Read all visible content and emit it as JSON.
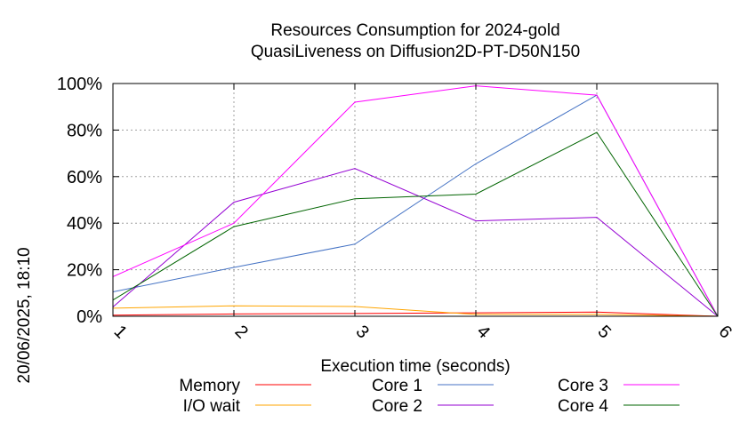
{
  "chart_data": {
    "type": "line",
    "title": "Resources Consumption for 2024-gold",
    "subtitle": "QuasiLiveness on Diffusion2D-PT-D50N150",
    "xlabel": "Execution time (seconds)",
    "ylabel": "",
    "x": [
      1,
      2,
      3,
      4,
      5,
      6
    ],
    "xlim": [
      1,
      6
    ],
    "ylim": [
      0,
      100
    ],
    "x_ticks": [
      "1",
      "2",
      "3",
      "4",
      "5",
      "6"
    ],
    "y_ticks": [
      {
        "value": 0,
        "label": "0%"
      },
      {
        "value": 20,
        "label": "20%"
      },
      {
        "value": 40,
        "label": "40%"
      },
      {
        "value": 60,
        "label": "60%"
      },
      {
        "value": 80,
        "label": "80%"
      },
      {
        "value": 100,
        "label": "100%"
      }
    ],
    "grid": true,
    "legend_position": "bottom",
    "series": [
      {
        "name": "Memory",
        "color": "#ff0000",
        "values": [
          0.5,
          1,
          1.2,
          1.5,
          1.8,
          0
        ]
      },
      {
        "name": "I/O wait",
        "color": "#ffa500",
        "values": [
          3.5,
          4.5,
          4.2,
          0.8,
          0.8,
          0
        ]
      },
      {
        "name": "Core 1",
        "color": "#4472c4",
        "values": [
          10.5,
          21,
          31,
          65.5,
          95,
          0
        ]
      },
      {
        "name": "Core 2",
        "color": "#9400d3",
        "values": [
          4,
          49,
          63.5,
          41,
          42.5,
          0
        ]
      },
      {
        "name": "Core 3",
        "color": "#ff00ff",
        "values": [
          17,
          40,
          92,
          99,
          95,
          0
        ]
      },
      {
        "name": "Core 4",
        "color": "#006400",
        "values": [
          7,
          38.5,
          50.5,
          52.5,
          79,
          0
        ]
      }
    ]
  },
  "timestamp": "20/06/2025, 18:10"
}
